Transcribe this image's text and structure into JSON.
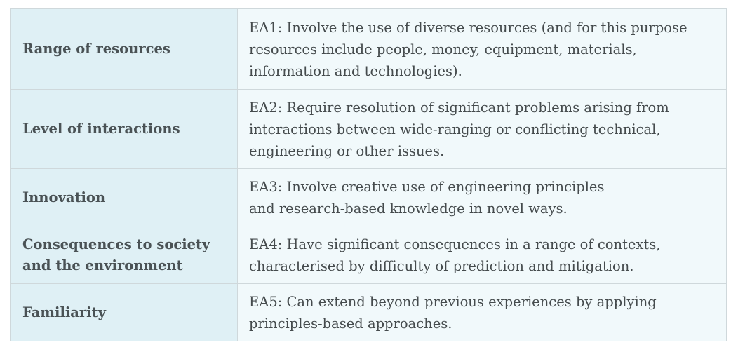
{
  "table": {
    "rows": [
      {
        "label": [
          "Range of resources"
        ],
        "description": [
          "EA1: Involve the use of diverse resources (and for this purpose",
          "resources include people, money, equipment, materials,",
          "information and technologies)."
        ]
      },
      {
        "label": [
          "Level of interactions"
        ],
        "description": [
          "EA2: Require resolution of significant problems arising from",
          "interactions between wide-ranging or conflicting technical,",
          "engineering or other issues."
        ]
      },
      {
        "label": [
          "Innovation"
        ],
        "description": [
          "EA3: Involve creative use of engineering principles",
          "and research-based knowledge in novel ways."
        ]
      },
      {
        "label": [
          "Consequences to society",
          "and the environment"
        ],
        "description": [
          "EA4: Have significant consequences in a range of contexts,",
          "characterised by difficulty of prediction and mitigation."
        ]
      },
      {
        "label": [
          "Familiarity"
        ],
        "description": [
          "EA5: Can extend beyond previous experiences by applying",
          "principles-based approaches."
        ]
      }
    ]
  }
}
